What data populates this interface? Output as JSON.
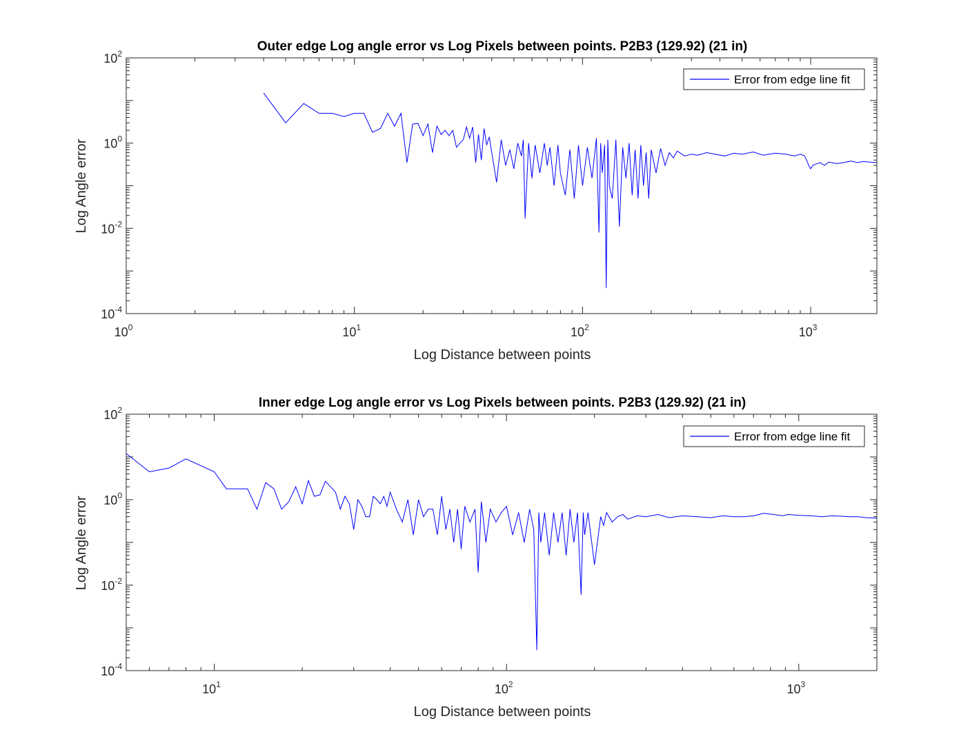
{
  "figure": {
    "background": "#ffffff"
  },
  "chart_data": [
    {
      "type": "line",
      "title": "Outer edge Log angle error vs Log Pixels between points. P2B3 (129.92) (21 in)",
      "xlabel": "Log Distance between points",
      "ylabel": "Log Angle error",
      "xscale": "log",
      "yscale": "log",
      "xlim": [
        1,
        1950
      ],
      "ylim": [
        0.0001,
        100
      ],
      "xticks": [
        {
          "value": 1,
          "base": "10",
          "exp": "0"
        },
        {
          "value": 10,
          "base": "10",
          "exp": "1"
        },
        {
          "value": 100,
          "base": "10",
          "exp": "2"
        },
        {
          "value": 1000,
          "base": "10",
          "exp": "3"
        }
      ],
      "yticks": [
        {
          "value": 0.0001,
          "base": "10",
          "exp": "-4"
        },
        {
          "value": 0.01,
          "base": "10",
          "exp": "-2"
        },
        {
          "value": 1,
          "base": "10",
          "exp": "0"
        },
        {
          "value": 100,
          "base": "10",
          "exp": "2"
        }
      ],
      "grid": false,
      "legend_position": "top-right",
      "series": [
        {
          "name": "Error from edge line fit",
          "color": "#0000ff",
          "x": [
            4,
            5,
            6,
            7,
            8,
            9,
            10,
            11,
            12,
            13,
            14,
            15,
            16,
            17,
            18,
            19,
            20,
            21,
            22,
            23,
            24,
            25,
            26,
            27,
            28,
            29,
            30,
            31,
            32,
            33,
            34,
            35,
            36,
            37,
            38,
            39,
            40,
            42,
            44,
            46,
            48,
            50,
            52,
            54,
            55,
            56,
            58,
            60,
            62,
            65,
            68,
            70,
            72,
            75,
            78,
            80,
            84,
            88,
            92,
            96,
            100,
            105,
            110,
            115,
            118,
            120,
            122,
            125,
            127,
            129,
            131,
            135,
            140,
            145,
            150,
            155,
            160,
            165,
            170,
            175,
            180,
            185,
            190,
            195,
            200,
            210,
            220,
            230,
            240,
            250,
            260,
            280,
            300,
            320,
            350,
            380,
            420,
            460,
            500,
            560,
            620,
            700,
            780,
            850,
            900,
            940,
            960,
            980,
            1000,
            1020,
            1050,
            1100,
            1150,
            1200,
            1300,
            1400,
            1500,
            1600,
            1700,
            1800,
            1950
          ],
          "y": [
            15,
            3,
            8.5,
            5,
            5,
            4.2,
            5,
            5,
            1.8,
            2.2,
            5,
            2.5,
            5,
            0.35,
            2.8,
            2.9,
            1.5,
            2.8,
            0.6,
            2.5,
            1.6,
            2,
            1.5,
            2,
            0.8,
            1,
            1.2,
            2.4,
            1.3,
            2.4,
            0.35,
            1.6,
            0.4,
            2.2,
            0.9,
            1.4,
            0.6,
            0.12,
            1.2,
            0.3,
            0.7,
            0.25,
            1,
            0.5,
            1.2,
            0.017,
            1,
            0.15,
            0.9,
            0.2,
            1,
            0.3,
            0.8,
            0.1,
            0.9,
            0.2,
            0.06,
            0.7,
            0.05,
            0.9,
            0.1,
            0.8,
            0.15,
            1.3,
            0.008,
            1,
            0.2,
            0.9,
            0.0004,
            1.2,
            0.1,
            0.05,
            1.2,
            0.011,
            0.8,
            0.15,
            1,
            0.06,
            0.7,
            0.05,
            0.9,
            0.1,
            0.6,
            0.05,
            0.7,
            0.2,
            0.75,
            0.3,
            0.6,
            0.45,
            0.65,
            0.5,
            0.55,
            0.52,
            0.6,
            0.55,
            0.5,
            0.58,
            0.55,
            0.62,
            0.52,
            0.58,
            0.55,
            0.5,
            0.55,
            0.5,
            0.4,
            0.3,
            0.25,
            0.3,
            0.32,
            0.35,
            0.3,
            0.36,
            0.33,
            0.35,
            0.38,
            0.35,
            0.37,
            0.36,
            0.35
          ]
        }
      ]
    },
    {
      "type": "line",
      "title": "Inner edge Log angle error vs Log Pixels between points. P2B3 (129.92) (21 in)",
      "xlabel": "Log Distance between points",
      "ylabel": "Log Angle error",
      "xscale": "log",
      "yscale": "log",
      "xlim": [
        5,
        1850
      ],
      "ylim": [
        0.0001,
        100
      ],
      "xticks": [
        {
          "value": 10,
          "base": "10",
          "exp": "1"
        },
        {
          "value": 100,
          "base": "10",
          "exp": "2"
        },
        {
          "value": 1000,
          "base": "10",
          "exp": "3"
        }
      ],
      "yticks": [
        {
          "value": 0.0001,
          "base": "10",
          "exp": "-4"
        },
        {
          "value": 0.01,
          "base": "10",
          "exp": "-2"
        },
        {
          "value": 1,
          "base": "10",
          "exp": "0"
        },
        {
          "value": 100,
          "base": "10",
          "exp": "2"
        }
      ],
      "grid": false,
      "legend_position": "top-right",
      "series": [
        {
          "name": "Error from edge line fit",
          "color": "#0000ff",
          "x": [
            5,
            6,
            7,
            8,
            10,
            11,
            13,
            14,
            15,
            16,
            17,
            18,
            19,
            20,
            21,
            22,
            23,
            24,
            25,
            26,
            27,
            28,
            29,
            30,
            31,
            32,
            33,
            34,
            35,
            36,
            37,
            38,
            39,
            40,
            42,
            44,
            46,
            48,
            50,
            52,
            54,
            56,
            58,
            60,
            62,
            64,
            66,
            68,
            70,
            72,
            75,
            78,
            80,
            82,
            85,
            88,
            92,
            96,
            100,
            105,
            110,
            115,
            120,
            124,
            127,
            129,
            131,
            135,
            140,
            145,
            150,
            155,
            160,
            165,
            170,
            175,
            180,
            183,
            185,
            190,
            200,
            210,
            215,
            220,
            230,
            240,
            250,
            260,
            280,
            300,
            330,
            360,
            400,
            450,
            500,
            550,
            600,
            650,
            700,
            760,
            820,
            880,
            920,
            960,
            1000,
            1100,
            1200,
            1300,
            1400,
            1500,
            1600,
            1700,
            1850
          ],
          "y": [
            12,
            4.5,
            5.5,
            9,
            4.5,
            1.8,
            1.8,
            0.6,
            2.5,
            1.8,
            0.6,
            0.9,
            2,
            0.8,
            2.8,
            1.2,
            1.3,
            2.7,
            2,
            1.5,
            0.6,
            1.2,
            0.8,
            0.2,
            1,
            0.7,
            0.4,
            0.4,
            1.2,
            1,
            0.8,
            1.2,
            0.7,
            1.5,
            0.6,
            0.3,
            1,
            0.15,
            1,
            0.4,
            0.6,
            0.6,
            0.15,
            1.2,
            0.2,
            0.6,
            0.1,
            0.6,
            0.07,
            0.7,
            0.3,
            0.6,
            0.02,
            0.9,
            0.1,
            0.6,
            0.3,
            0.5,
            0.7,
            0.15,
            0.5,
            0.1,
            0.6,
            0.2,
            0.0003,
            0.5,
            0.1,
            0.5,
            0.05,
            0.5,
            0.1,
            0.5,
            0.05,
            0.6,
            0.1,
            0.5,
            0.006,
            0.5,
            0.15,
            0.5,
            0.03,
            0.4,
            0.25,
            0.5,
            0.3,
            0.4,
            0.45,
            0.35,
            0.42,
            0.4,
            0.45,
            0.38,
            0.42,
            0.4,
            0.38,
            0.42,
            0.4,
            0.4,
            0.42,
            0.48,
            0.45,
            0.42,
            0.45,
            0.44,
            0.43,
            0.42,
            0.4,
            0.42,
            0.41,
            0.4,
            0.4,
            0.38,
            0.37
          ]
        }
      ]
    }
  ]
}
